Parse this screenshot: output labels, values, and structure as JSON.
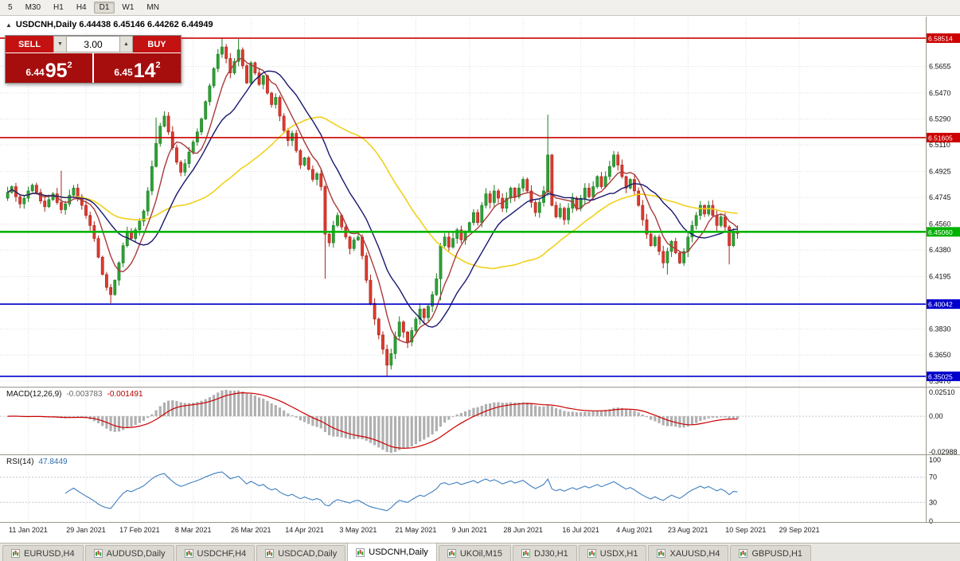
{
  "toolbar": {
    "active": "D1",
    "timeframes": [
      "5",
      "M30",
      "H1",
      "H4",
      "D1",
      "W1",
      "MN"
    ]
  },
  "icons": {
    "collapse_triangle": "▲",
    "spinner_down": "▼",
    "spinner_up": "▲"
  },
  "chart": {
    "quote_line": "USDCNH,Daily 6.44438 6.45146 6.44262 6.44949"
  },
  "trade_panel": {
    "sell_label": "SELL",
    "buy_label": "BUY",
    "lot": "3.00",
    "bid_prefix": "6.44",
    "bid_big": "95",
    "bid_sup": "2",
    "ask_prefix": "6.45",
    "ask_big": "14",
    "ask_sup": "2"
  },
  "chart_data": {
    "type": "candlestick",
    "symbol": "USDCNH",
    "timeframe": "Daily",
    "header_ohlc": {
      "open": "6.44438",
      "high": "6.45146",
      "low": "6.44262",
      "close": "6.44949"
    },
    "price_axis_ticks": [
      6.5655,
      6.547,
      6.529,
      6.511,
      6.4925,
      6.4745,
      6.456,
      6.438,
      6.4195,
      6.401,
      6.383,
      6.365,
      6.347
    ],
    "h_lines": [
      {
        "price": 6.58514,
        "label": "6.58514",
        "color": "#cc0000",
        "width": 1.6
      },
      {
        "price": 6.51605,
        "label": "6.51605",
        "color": "#cc0000",
        "width": 1.6
      },
      {
        "price": 6.4506,
        "label": "6.45060",
        "color": "#00b300",
        "width": 2.6
      },
      {
        "price": 6.40042,
        "label": "6.40042",
        "color": "#0000cc",
        "width": 1.6
      },
      {
        "price": 6.35025,
        "label": "6.35025",
        "color": "#0000cc",
        "width": 1.6
      }
    ],
    "x_labels": [
      {
        "t": "11 Jan 2021",
        "i": 5
      },
      {
        "t": "29 Jan 2021",
        "i": 19
      },
      {
        "t": "17 Feb 2021",
        "i": 32
      },
      {
        "t": "8 Mar 2021",
        "i": 45
      },
      {
        "t": "26 Mar 2021",
        "i": 59
      },
      {
        "t": "14 Apr 2021",
        "i": 72
      },
      {
        "t": "3 May 2021",
        "i": 85
      },
      {
        "t": "21 May 2021",
        "i": 99
      },
      {
        "t": "9 Jun 2021",
        "i": 112
      },
      {
        "t": "28 Jun 2021",
        "i": 125
      },
      {
        "t": "16 Jul 2021",
        "i": 139
      },
      {
        "t": "4 Aug 2021",
        "i": 152
      },
      {
        "t": "23 Aug 2021",
        "i": 165
      },
      {
        "t": "10 Sep 2021",
        "i": 179
      },
      {
        "t": "29 Sep 2021",
        "i": 192
      }
    ],
    "first_open": 6.474,
    "closes": [
      6.478,
      6.482,
      6.475,
      6.47,
      6.474,
      6.479,
      6.483,
      6.478,
      6.472,
      6.468,
      6.473,
      6.477,
      6.471,
      6.466,
      6.47,
      6.476,
      6.481,
      6.475,
      6.469,
      6.462,
      6.455,
      6.446,
      6.433,
      6.421,
      6.412,
      6.407,
      6.417,
      6.429,
      6.441,
      6.45,
      6.446,
      6.452,
      6.458,
      6.465,
      6.479,
      6.496,
      6.512,
      6.524,
      6.531,
      6.52,
      6.509,
      6.499,
      6.492,
      6.498,
      6.506,
      6.513,
      6.52,
      6.529,
      6.541,
      6.552,
      6.564,
      6.574,
      6.579,
      6.571,
      6.561,
      6.569,
      6.577,
      6.566,
      6.554,
      6.568,
      6.561,
      6.553,
      6.559,
      6.547,
      6.539,
      6.544,
      6.531,
      6.521,
      6.514,
      6.519,
      6.507,
      6.497,
      6.502,
      6.494,
      6.487,
      6.491,
      6.482,
      6.449,
      6.443,
      6.455,
      6.462,
      6.454,
      6.447,
      6.439,
      6.445,
      6.447,
      6.434,
      6.417,
      6.401,
      6.39,
      6.379,
      6.369,
      6.358,
      6.366,
      6.378,
      6.388,
      6.381,
      6.374,
      6.382,
      6.39,
      6.397,
      6.391,
      6.399,
      6.407,
      6.418,
      6.441,
      6.447,
      6.44,
      6.446,
      6.452,
      6.445,
      6.451,
      6.457,
      6.464,
      6.457,
      6.469,
      6.477,
      6.471,
      6.479,
      6.474,
      6.467,
      6.474,
      6.481,
      6.475,
      6.481,
      6.487,
      6.479,
      6.471,
      6.464,
      6.471,
      6.479,
      6.504,
      6.469,
      6.461,
      6.467,
      6.459,
      6.467,
      6.474,
      6.467,
      6.474,
      6.481,
      6.475,
      6.482,
      6.489,
      6.482,
      6.489,
      6.496,
      6.504,
      6.497,
      6.489,
      6.481,
      6.487,
      6.479,
      6.469,
      6.459,
      6.449,
      6.441,
      6.447,
      6.437,
      6.429,
      6.437,
      6.444,
      6.436,
      6.429,
      6.437,
      6.447,
      6.455,
      6.462,
      6.469,
      6.463,
      6.469,
      6.462,
      6.455,
      6.461,
      6.454,
      6.441,
      6.451,
      6.4495
    ],
    "wick_overrides": {
      "13": {
        "h": 6.493
      },
      "25": {
        "l": 6.401
      },
      "36": {
        "h": 6.53
      },
      "52": {
        "h": 6.5851
      },
      "56": {
        "h": 6.5845
      },
      "77": {
        "l": 6.418
      },
      "92": {
        "l": 6.3505
      },
      "105": {
        "l": 6.403
      },
      "131": {
        "h": 6.532
      },
      "160": {
        "l": 6.421
      },
      "175": {
        "l": 6.428
      }
    },
    "moving_averages": [
      {
        "period": 42,
        "color": "#f0d11c",
        "width": 1.6
      },
      {
        "period": 7,
        "color": "#a93a3a",
        "width": 1.4
      },
      {
        "period": 16,
        "color": "#17176e",
        "width": 1.4
      }
    ],
    "macd": {
      "name": "MACD(12,26,9)",
      "value1": "-0.003783",
      "value2": "-0.001491",
      "fast": 12,
      "slow": 26,
      "signal": 9,
      "axis_top": "0.02510",
      "axis_zero": "0.00",
      "axis_bottom": "-0.02988",
      "hist_color": "#b0b0b0",
      "signal_color": "#cc0000"
    },
    "rsi": {
      "name": "RSI(14)",
      "value": "47.8449",
      "period": 14,
      "axis": [
        "100",
        "70",
        "30",
        "0"
      ],
      "levels": [
        70,
        30
      ],
      "line_color": "#3f7fbf"
    },
    "colors": {
      "up": "#2fa136",
      "up_stroke": "#1b7d22",
      "down": "#dd3a2e",
      "down_stroke": "#a8251c",
      "grid": "#e0dede",
      "axis_text": "#111111",
      "separator": "#9a968c"
    }
  },
  "tabs": {
    "active_index": 4,
    "items": [
      {
        "label": "EURUSD,H4"
      },
      {
        "label": "AUDUSD,Daily"
      },
      {
        "label": "USDCHF,H4"
      },
      {
        "label": "USDCAD,Daily"
      },
      {
        "label": "USDCNH,Daily"
      },
      {
        "label": "UKOil,M15"
      },
      {
        "label": "DJ30,H1"
      },
      {
        "label": "USDX,H1"
      },
      {
        "label": "XAUUSD,H4"
      },
      {
        "label": "GBPUSD,H1"
      }
    ]
  }
}
